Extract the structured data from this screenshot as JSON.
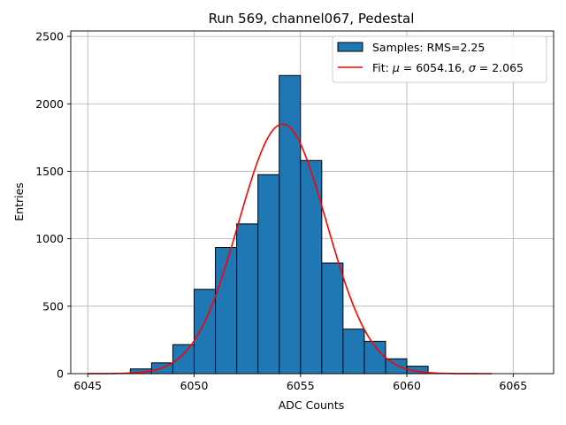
{
  "chart_data": {
    "type": "bar",
    "title": "Run 569, channel067, Pedestal",
    "xlabel": "ADC Counts",
    "ylabel": "Entries",
    "xlim": [
      6044.2,
      6066.9
    ],
    "ylim": [
      0,
      2540
    ],
    "xticks": [
      6045,
      6050,
      6055,
      6060,
      6065
    ],
    "yticks": [
      0,
      500,
      1000,
      1500,
      2000,
      2500
    ],
    "grid": true,
    "legend_position": "top-right",
    "histogram": {
      "name": "Samples: RMS=2.25",
      "color": "#1f77b4",
      "edge_color": "#000000",
      "bins": [
        {
          "x0": 6047,
          "x1": 6048,
          "count": 35
        },
        {
          "x0": 6048,
          "x1": 6049,
          "count": 80
        },
        {
          "x0": 6049,
          "x1": 6050,
          "count": 215
        },
        {
          "x0": 6050,
          "x1": 6051,
          "count": 625
        },
        {
          "x0": 6051,
          "x1": 6052,
          "count": 935
        },
        {
          "x0": 6052,
          "x1": 6053,
          "count": 1110
        },
        {
          "x0": 6053,
          "x1": 6054,
          "count": 1475
        },
        {
          "x0": 6054,
          "x1": 6055,
          "count": 2210
        },
        {
          "x0": 6055,
          "x1": 6056,
          "count": 1580
        },
        {
          "x0": 6056,
          "x1": 6057,
          "count": 820
        },
        {
          "x0": 6057,
          "x1": 6058,
          "count": 330
        },
        {
          "x0": 6058,
          "x1": 6059,
          "count": 240
        },
        {
          "x0": 6059,
          "x1": 6060,
          "count": 110
        },
        {
          "x0": 6060,
          "x1": 6061,
          "count": 55
        }
      ]
    },
    "fit": {
      "name_prefix": "Fit: ",
      "mu_symbol": "μ",
      "mu_text": " = 6054.16, ",
      "sigma_symbol": "σ",
      "sigma_text": " = 2.065",
      "color": "#ff0000",
      "mu": 6054.16,
      "sigma": 2.065,
      "amplitude": 1850,
      "x_range": [
        6045,
        6064
      ]
    }
  }
}
